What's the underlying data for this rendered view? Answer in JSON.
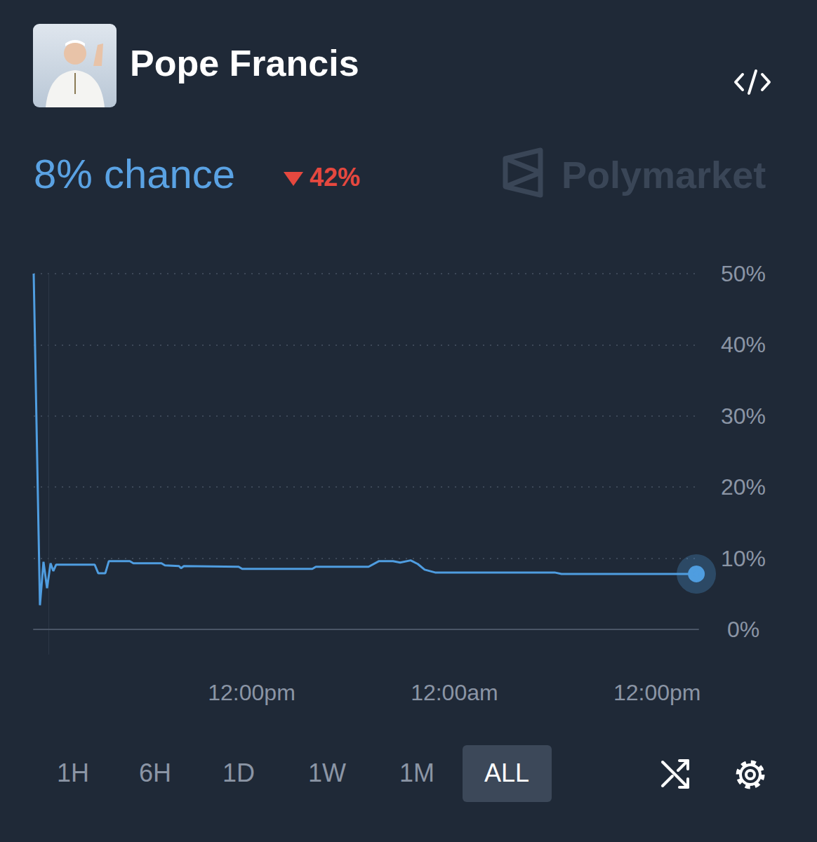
{
  "header": {
    "title": "Pope Francis",
    "probability": "8% chance",
    "change": "42%",
    "brand": "Polymarket"
  },
  "range_buttons": [
    "1H",
    "6H",
    "1D",
    "1W",
    "1M",
    "ALL"
  ],
  "selected_button": "ALL",
  "chart_data": {
    "type": "line",
    "color": "#4f9de0",
    "x": [
      -0.9,
      -0.53,
      -0.32,
      -0.11,
      0.1,
      0.26,
      0.43,
      2.71,
      2.92,
      3.34,
      3.55,
      4.79,
      5.0,
      6.66,
      6.87,
      7.7,
      7.82,
      7.99,
      11.23,
      11.44,
      15.59,
      15.8,
      18.92,
      19.54,
      20.37,
      20.79,
      21.41,
      21.83,
      22.24,
      22.86,
      29.93,
      30.34,
      38.32
    ],
    "values": [
      50,
      3.4,
      9.5,
      5.8,
      9.3,
      8.2,
      9.1,
      9.1,
      7.9,
      7.9,
      9.6,
      9.6,
      9.3,
      9.3,
      9.0,
      8.9,
      8.6,
      8.9,
      8.8,
      8.5,
      8.5,
      8.8,
      8.8,
      9.6,
      9.6,
      9.4,
      9.7,
      9.2,
      8.4,
      8.0,
      8.0,
      7.8,
      7.8
    ],
    "xlim": [
      -0.9,
      38.44
    ],
    "xticks": [
      {
        "value": 12,
        "label": "12:00pm"
      },
      {
        "value": 24,
        "label": "12:00am"
      },
      {
        "value": 36,
        "label": "12:00pm"
      }
    ],
    "ylim": [
      -3.5,
      50
    ],
    "yticks": [
      {
        "value": 0,
        "label": "0%"
      },
      {
        "value": 10,
        "label": "10%"
      },
      {
        "value": 20,
        "label": "20%"
      },
      {
        "value": 30,
        "label": "30%"
      },
      {
        "value": 40,
        "label": "40%"
      },
      {
        "value": 50,
        "label": "50%"
      }
    ],
    "grid": true
  }
}
